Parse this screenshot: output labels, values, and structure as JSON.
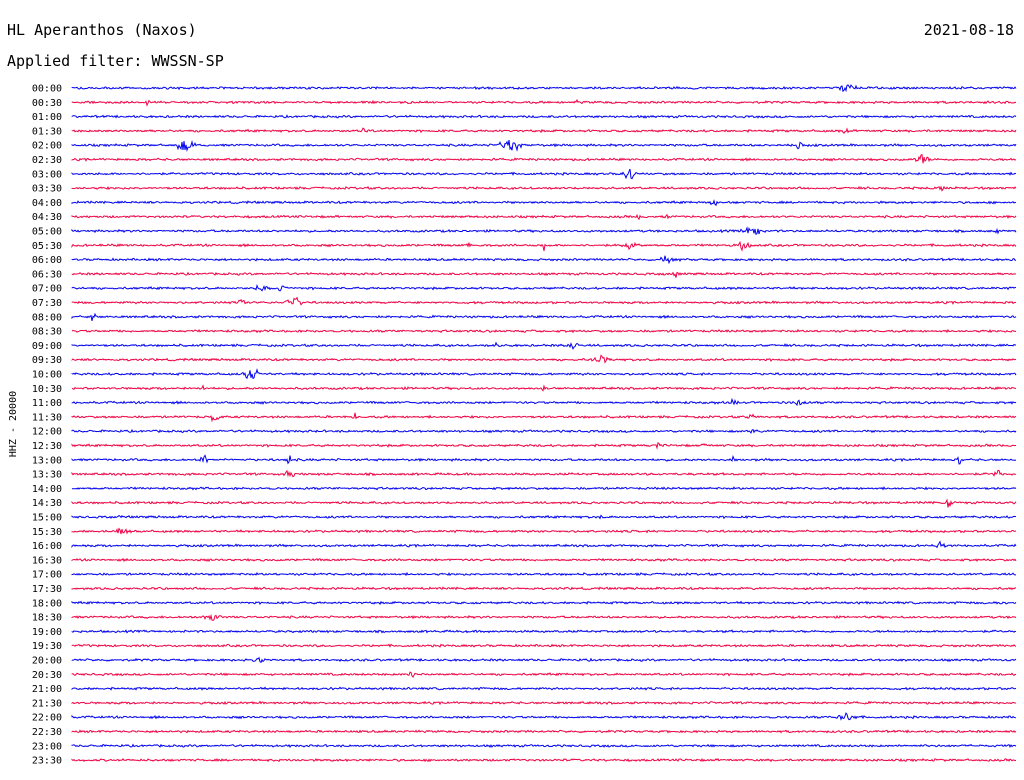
{
  "header": {
    "station": "HL Aperanthos (Naxos)",
    "filter": "Applied filter: WWSSN-SP",
    "date": "2021-08-18"
  },
  "colors": {
    "even": "#0000ee",
    "odd": "#ee0044",
    "text": "#000000",
    "background": "#ffffff"
  },
  "chart_data": {
    "type": "line",
    "title": "HL Aperanthos (Naxos)",
    "subtitle": "Applied filter: WWSSN-SP",
    "date": "2021-08-18",
    "ylabel": "HHZ - 20000",
    "xlabel": "",
    "x_span_minutes": 30,
    "series_colors": [
      "#0000ee",
      "#ee0044"
    ],
    "rows": [
      {
        "time": "00:00",
        "events": [
          [
            0.822,
            1.0,
            0.012
          ]
        ]
      },
      {
        "time": "00:30",
        "events": [
          [
            0.08,
            0.5,
            0.003
          ],
          [
            0.535,
            0.3,
            0.003
          ],
          [
            0.97,
            0.4,
            0.003
          ]
        ]
      },
      {
        "time": "01:00",
        "events": []
      },
      {
        "time": "01:30",
        "events": [
          [
            0.03,
            0.4,
            0.006
          ],
          [
            0.31,
            0.5,
            0.006
          ],
          [
            0.82,
            0.6,
            0.005
          ]
        ]
      },
      {
        "time": "02:00",
        "events": [
          [
            0.12,
            0.9,
            0.016
          ],
          [
            0.465,
            1.0,
            0.018
          ],
          [
            0.77,
            0.5,
            0.01
          ]
        ]
      },
      {
        "time": "02:30",
        "events": [
          [
            0.9,
            0.9,
            0.01
          ]
        ]
      },
      {
        "time": "03:00",
        "events": [
          [
            0.59,
            1.0,
            0.01
          ]
        ]
      },
      {
        "time": "03:30",
        "events": [
          [
            0.92,
            0.5,
            0.012
          ]
        ]
      },
      {
        "time": "04:00",
        "events": [
          [
            0.68,
            0.6,
            0.01
          ]
        ]
      },
      {
        "time": "04:30",
        "events": [
          [
            0.6,
            0.6,
            0.003
          ],
          [
            0.63,
            0.7,
            0.003
          ]
        ]
      },
      {
        "time": "05:00",
        "events": [
          [
            0.72,
            0.8,
            0.016
          ],
          [
            0.98,
            0.4,
            0.005
          ]
        ]
      },
      {
        "time": "05:30",
        "events": [
          [
            0.42,
            0.5,
            0.005
          ],
          [
            0.5,
            0.9,
            0.004
          ],
          [
            0.59,
            0.7,
            0.014
          ],
          [
            0.71,
            0.7,
            0.012
          ]
        ]
      },
      {
        "time": "06:00",
        "events": [
          [
            0.63,
            0.5,
            0.015
          ]
        ]
      },
      {
        "time": "06:30",
        "events": [
          [
            0.64,
            0.7,
            0.004
          ]
        ]
      },
      {
        "time": "07:00",
        "events": [
          [
            0.22,
            1.0,
            0.008
          ],
          [
            0.2,
            0.6,
            0.01
          ]
        ]
      },
      {
        "time": "07:30",
        "events": [
          [
            0.18,
            1.0,
            0.005
          ],
          [
            0.235,
            0.9,
            0.012
          ]
        ]
      },
      {
        "time": "08:00",
        "events": [
          [
            0.022,
            1.0,
            0.004
          ]
        ]
      },
      {
        "time": "08:30",
        "events": []
      },
      {
        "time": "09:00",
        "events": [
          [
            0.45,
            0.9,
            0.004
          ],
          [
            0.53,
            0.8,
            0.008
          ]
        ]
      },
      {
        "time": "09:30",
        "events": [
          [
            0.56,
            0.5,
            0.02
          ]
        ]
      },
      {
        "time": "10:00",
        "events": [
          [
            0.19,
            1.0,
            0.012
          ]
        ]
      },
      {
        "time": "10:30",
        "events": [
          [
            0.14,
            0.6,
            0.005
          ],
          [
            0.5,
            0.6,
            0.005
          ]
        ]
      },
      {
        "time": "11:00",
        "events": [
          [
            0.7,
            0.4,
            0.01
          ],
          [
            0.77,
            0.5,
            0.01
          ]
        ]
      },
      {
        "time": "11:30",
        "events": [
          [
            0.15,
            0.9,
            0.008
          ],
          [
            0.3,
            0.6,
            0.005
          ],
          [
            0.72,
            0.8,
            0.006
          ]
        ]
      },
      {
        "time": "12:00",
        "events": [
          [
            0.72,
            0.4,
            0.01
          ]
        ]
      },
      {
        "time": "12:30",
        "events": [
          [
            0.62,
            0.5,
            0.005
          ],
          [
            0.67,
            0.5,
            0.004
          ]
        ]
      },
      {
        "time": "13:00",
        "events": [
          [
            0.14,
            0.8,
            0.006
          ],
          [
            0.23,
            0.8,
            0.005
          ],
          [
            0.7,
            0.6,
            0.004
          ],
          [
            0.94,
            0.8,
            0.003
          ]
        ]
      },
      {
        "time": "13:30",
        "events": [
          [
            0.23,
            0.6,
            0.01
          ],
          [
            0.98,
            1.0,
            0.005
          ]
        ]
      },
      {
        "time": "14:00",
        "events": []
      },
      {
        "time": "14:30",
        "events": [
          [
            0.93,
            0.8,
            0.007
          ]
        ]
      },
      {
        "time": "15:00",
        "events": [
          [
            0.05,
            0.4,
            0.004
          ],
          [
            0.56,
            0.3,
            0.003
          ]
        ]
      },
      {
        "time": "15:30",
        "events": [
          [
            0.05,
            0.5,
            0.02
          ]
        ]
      },
      {
        "time": "16:00",
        "events": [
          [
            0.92,
            0.5,
            0.008
          ]
        ]
      },
      {
        "time": "16:30",
        "events": []
      },
      {
        "time": "17:00",
        "events": []
      },
      {
        "time": "17:30",
        "events": []
      },
      {
        "time": "18:00",
        "events": [
          [
            0.985,
            0.5,
            0.005
          ]
        ]
      },
      {
        "time": "18:30",
        "events": [
          [
            0.15,
            0.9,
            0.014
          ]
        ]
      },
      {
        "time": "19:00",
        "events": []
      },
      {
        "time": "19:30",
        "events": []
      },
      {
        "time": "20:00",
        "events": [
          [
            0.2,
            0.4,
            0.015
          ]
        ]
      },
      {
        "time": "20:30",
        "events": [
          [
            0.36,
            0.8,
            0.008
          ]
        ]
      },
      {
        "time": "21:00",
        "events": []
      },
      {
        "time": "21:30",
        "events": []
      },
      {
        "time": "22:00",
        "events": [
          [
            0.82,
            1.0,
            0.014
          ]
        ]
      },
      {
        "time": "22:30",
        "events": []
      },
      {
        "time": "23:00",
        "events": []
      },
      {
        "time": "23:30",
        "events": []
      }
    ]
  }
}
